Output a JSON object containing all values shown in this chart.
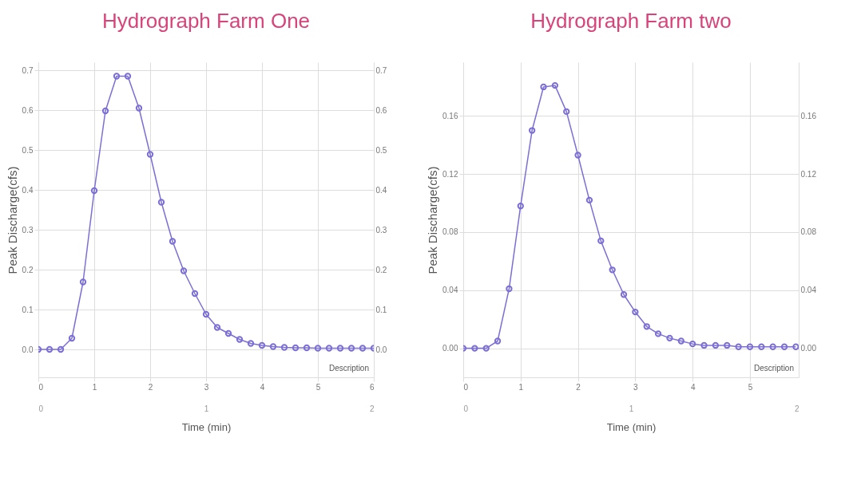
{
  "chart_data": [
    {
      "type": "line",
      "title": "Hydrograph Farm One",
      "xlabel": "Time (min)",
      "ylabel": "Peak Discharge(cfs)",
      "annotations": [
        "Description"
      ],
      "x": [
        0,
        0.2,
        0.4,
        0.6,
        0.8,
        1.0,
        1.2,
        1.4,
        1.6,
        1.8,
        2.0,
        2.2,
        2.4,
        2.6,
        2.8,
        3.0,
        3.2,
        3.4,
        3.6,
        3.8,
        4.0,
        4.2,
        4.4,
        4.6,
        4.8,
        5.0,
        5.2,
        5.4,
        5.6,
        5.8,
        6.0
      ],
      "series": [
        {
          "color": "#7b6fd6",
          "values": [
            0,
            0,
            0,
            0.028,
            0.169,
            0.398,
            0.598,
            0.685,
            0.685,
            0.605,
            0.489,
            0.369,
            0.271,
            0.197,
            0.14,
            0.088,
            0.055,
            0.04,
            0.025,
            0.015,
            0.01,
            0.007,
            0.005,
            0.004,
            0.004,
            0.003,
            0.003,
            0.003,
            0.003,
            0.003,
            0.003
          ]
        }
      ],
      "xlim": [
        0,
        6
      ],
      "xticks": [
        0,
        1,
        2,
        3,
        4,
        5,
        6
      ],
      "ylim": [
        -0.07,
        0.72
      ],
      "yticks": [
        {
          "value": 0,
          "label": "0.0"
        },
        0.1,
        0.2,
        0.3,
        0.4,
        0.5,
        0.6,
        0.7
      ],
      "y2lim": [
        -0.07,
        0.72
      ],
      "y2ticks": [
        {
          "value": 0,
          "label": "0.0"
        },
        0.1,
        0.2,
        0.3,
        0.4,
        0.5,
        0.6,
        0.7
      ],
      "x2lim": [
        0,
        2
      ],
      "x2ticks": [
        0,
        1,
        2
      ],
      "grid": true,
      "marker": "circle",
      "line_style": "solid"
    },
    {
      "type": "line",
      "title": "Hydrograph Farm two",
      "xlabel": "Time (min)",
      "ylabel": "Peak Discharge(cfs)",
      "annotations": [
        "Description"
      ],
      "x": [
        0,
        0.2,
        0.4,
        0.6,
        0.8,
        1.0,
        1.2,
        1.4,
        1.6,
        1.8,
        2.0,
        2.2,
        2.4,
        2.6,
        2.8,
        3.0,
        3.2,
        3.4,
        3.6,
        3.8,
        4.0,
        4.2,
        4.4,
        4.6,
        4.8,
        5.0,
        5.2,
        5.4,
        5.6,
        5.8
      ],
      "series": [
        {
          "color": "#7b6fd6",
          "values": [
            0,
            0,
            0,
            0.005,
            0.041,
            0.098,
            0.15,
            0.18,
            0.181,
            0.163,
            0.133,
            0.102,
            0.074,
            0.054,
            0.037,
            0.025,
            0.015,
            0.01,
            0.007,
            0.005,
            0.003,
            0.002,
            0.002,
            0.002,
            0.001,
            0.001,
            0.001,
            0.001,
            0.001,
            0.001
          ]
        }
      ],
      "xlim": [
        0,
        5.85
      ],
      "xticks": [
        0,
        1,
        2,
        3,
        4,
        5
      ],
      "ylim": [
        -0.02,
        0.197
      ],
      "yticks": [
        {
          "value": 0,
          "label": "0.00"
        },
        0.04,
        0.08,
        0.12,
        0.16
      ],
      "y2lim": [
        -0.02,
        0.197
      ],
      "y2ticks": [
        {
          "value": 0,
          "label": "0.00"
        },
        0.04,
        0.08,
        0.12,
        0.16
      ],
      "x2lim": [
        0,
        2
      ],
      "x2ticks": [
        0,
        1,
        2
      ],
      "grid": true,
      "marker": "circle",
      "line_style": "solid"
    }
  ]
}
